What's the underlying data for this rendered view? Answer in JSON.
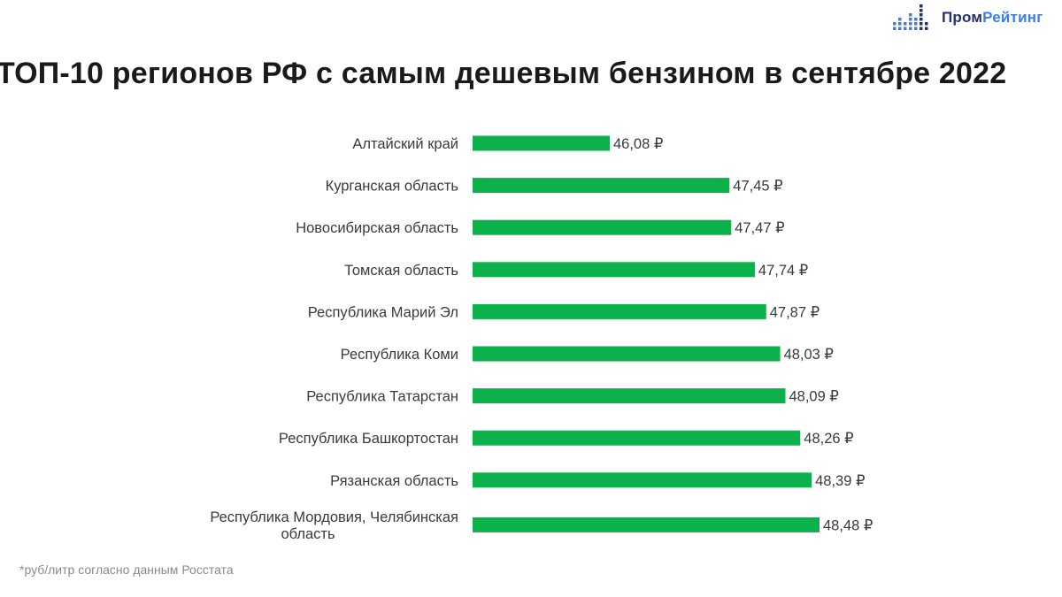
{
  "header": {
    "title": "ТОП-10 регионов РФ с самым дешевым бензином в сентябре 2022",
    "logo": {
      "part1": "Пром",
      "part2": "Рейтинг",
      "icon": "bar-dots-logo-icon",
      "colors": {
        "dark": "#23306b",
        "accent": "#3d7cf0"
      }
    }
  },
  "footnote": "*руб/литр согласно данным Росстата",
  "colors": {
    "bar": "#0db14b"
  },
  "chart_data": {
    "type": "bar",
    "orientation": "horizontal",
    "title": "ТОП-10 регионов РФ с самым дешевым бензином в сентябре 2022",
    "categories": [
      "Алтайский край",
      "Курганская область",
      "Новосибирская область",
      "Томская область",
      "Республика Марий Эл",
      "Республика Коми",
      "Республика Татарстан",
      "Республика Башкортостан",
      "Рязанская область",
      [
        "Республика Мордовия, Челябинская",
        "область"
      ]
    ],
    "values": [
      46.08,
      47.45,
      47.47,
      47.74,
      47.87,
      48.03,
      48.09,
      48.26,
      48.39,
      48.48
    ],
    "value_labels": [
      "46,08 ₽",
      "47,45 ₽",
      "47,47 ₽",
      "47,74 ₽",
      "47,87 ₽",
      "48,03 ₽",
      "48,09 ₽",
      "48,26 ₽",
      "48,39 ₽",
      "48,48 ₽"
    ],
    "grid": false,
    "legend": "none"
  }
}
